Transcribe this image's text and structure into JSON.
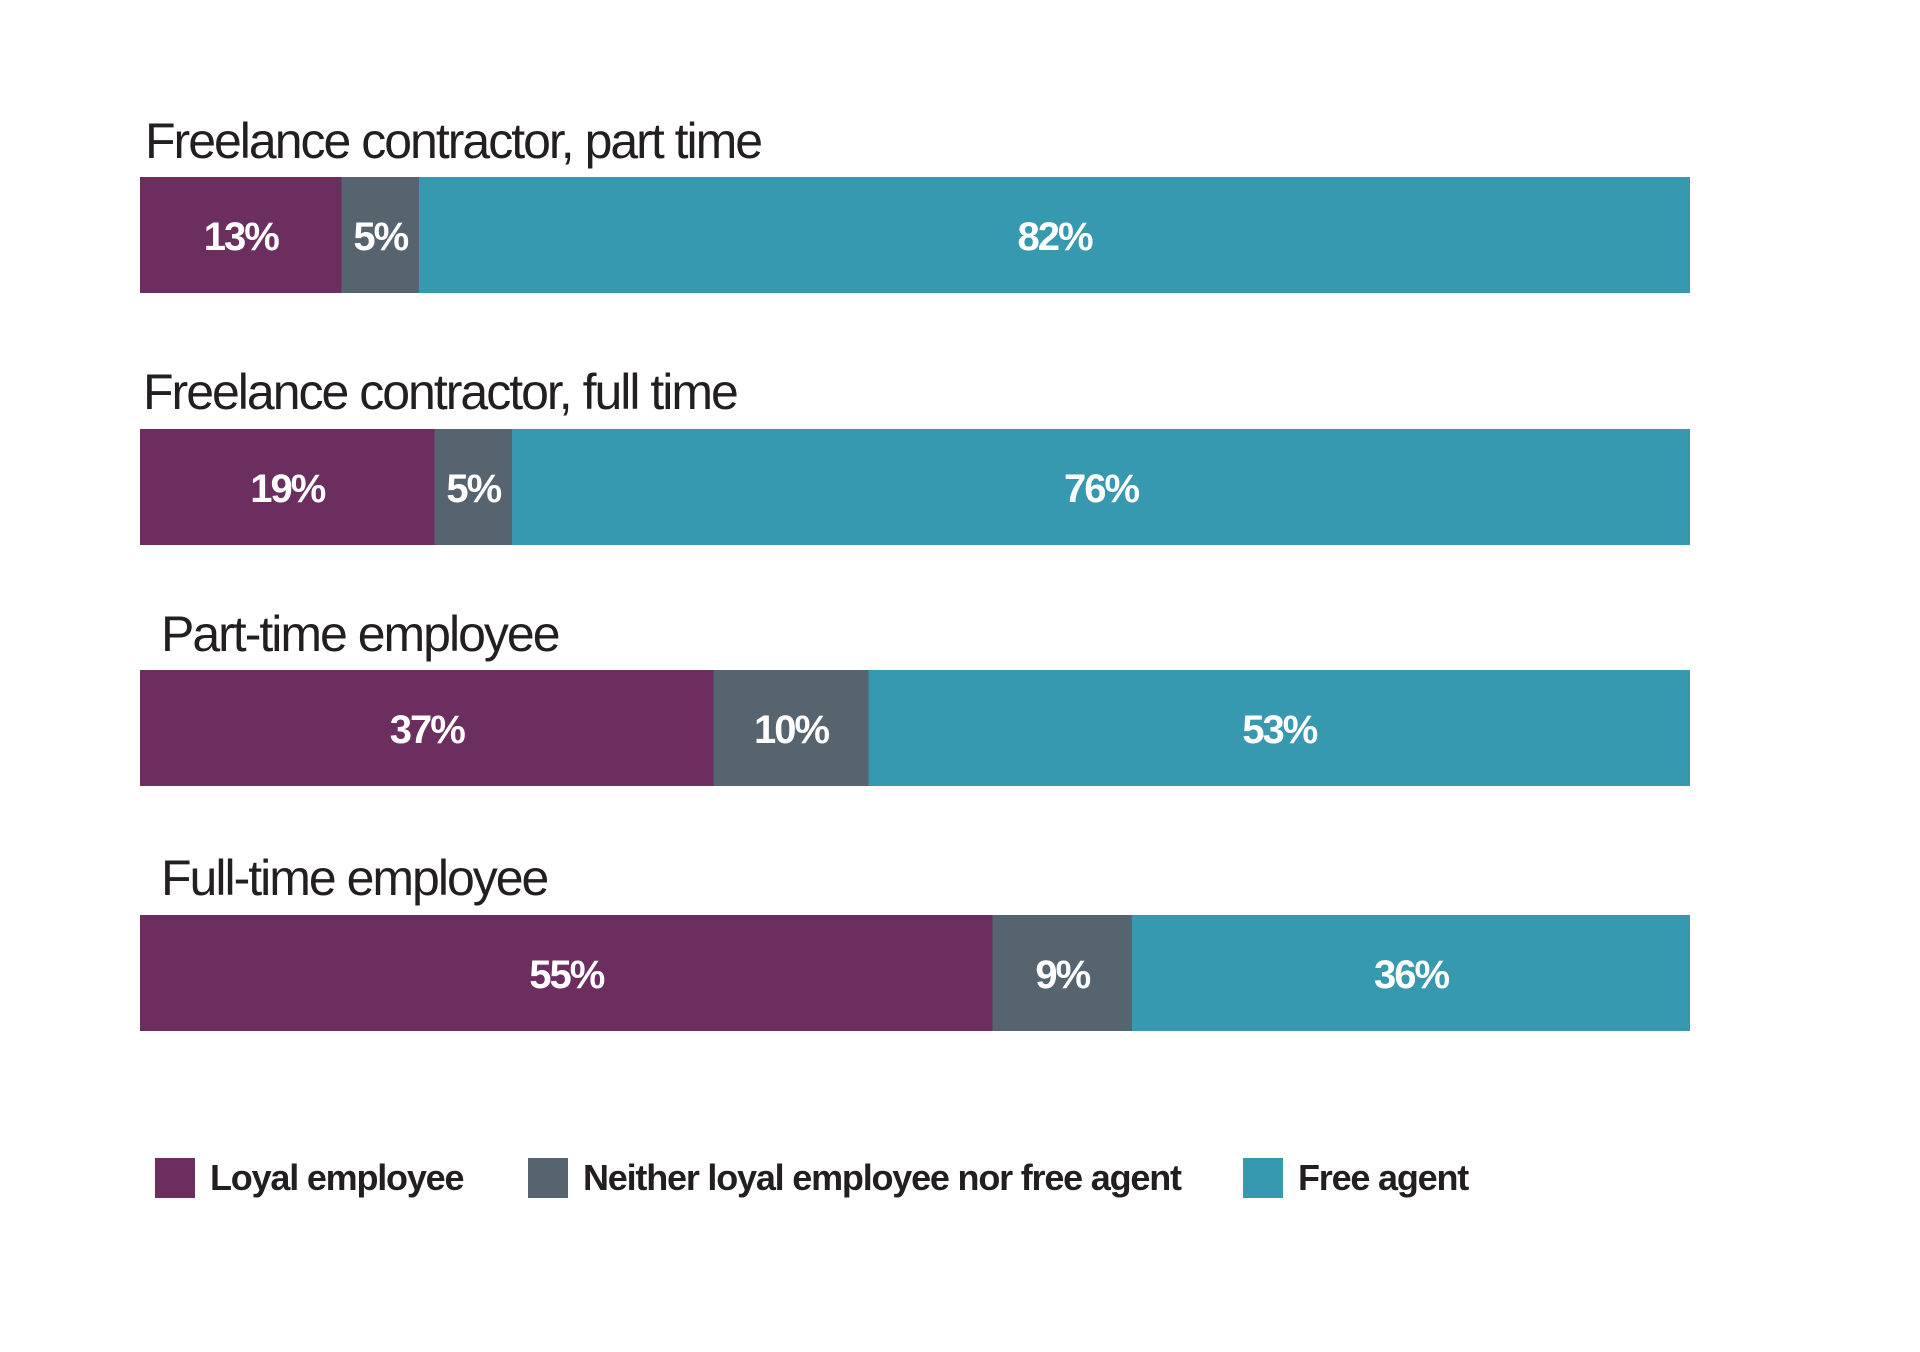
{
  "chart_data": {
    "type": "bar",
    "orientation": "horizontal",
    "stacked": true,
    "percent_stacked": true,
    "categories": [
      "Freelance contractor, part time",
      "Freelance contractor, full time",
      "Part-time employee",
      "Full-time employee"
    ],
    "series": [
      {
        "name": "Loyal employee",
        "color": "#6b2e5f",
        "values": [
          13,
          19,
          37,
          55
        ],
        "labels": [
          "13%",
          "19%",
          "37%",
          "55%"
        ]
      },
      {
        "name": "Neither loyal employee nor free agent",
        "color": "#566470",
        "values": [
          5,
          5,
          10,
          9
        ],
        "labels": [
          "5%",
          "5%",
          "10%",
          "9%"
        ]
      },
      {
        "name": "Free agent",
        "color": "#3799b0",
        "values": [
          82,
          76,
          53,
          36
        ],
        "labels": [
          "82%",
          "76%",
          "53%",
          "36%"
        ]
      }
    ],
    "xlim": [
      0,
      100
    ],
    "grid": false,
    "legend_position": "bottom"
  }
}
